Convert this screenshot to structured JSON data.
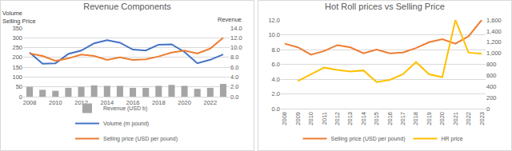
{
  "chart_data": [
    {
      "type": "bar",
      "title": "Revenue Components",
      "ylabel": "Volume\nSelling Price",
      "y2label": "Revenue",
      "categories": [
        "2008",
        null,
        "2010",
        null,
        "2012",
        null,
        "2014",
        null,
        "2016",
        null,
        "2018",
        null,
        "2020",
        null,
        "2022",
        null
      ],
      "series": [
        {
          "name": "Revenue (USD b)",
          "type": "bar",
          "axis": "y2",
          "color": "#a5a5a5",
          "values": [
            2.0,
            1.4,
            1.2,
            1.8,
            2.0,
            2.3,
            2.2,
            2.2,
            1.8,
            1.8,
            2.2,
            2.4,
            2.2,
            1.6,
            1.8,
            2.6
          ]
        },
        {
          "name": "Volume (m pound)",
          "type": "line",
          "color": "#4472c4",
          "values": [
            225,
            168,
            170,
            218,
            235,
            272,
            288,
            275,
            240,
            235,
            265,
            267,
            228,
            170,
            188,
            215
          ]
        },
        {
          "name": "Selling price (USD per pound)",
          "type": "line",
          "axis": "y2",
          "color": "#ed7d31",
          "values": [
            8.8,
            8.3,
            7.3,
            7.8,
            8.6,
            8.3,
            7.5,
            8.0,
            7.5,
            7.6,
            8.2,
            9.0,
            9.4,
            8.8,
            9.8,
            12.0
          ]
        }
      ],
      "ylim": [
        0,
        350
      ],
      "yticks": [
        0,
        50,
        100,
        150,
        200,
        250,
        300,
        350
      ],
      "y2lim": [
        0,
        14
      ],
      "y2ticks": [
        {
          "value": 0,
          "label": "0.0"
        },
        {
          "value": 2,
          "label": "2.0"
        },
        {
          "value": 4,
          "label": "4.0"
        },
        {
          "value": 6,
          "label": "6.0"
        },
        {
          "value": 8,
          "label": "8.0"
        },
        {
          "value": 10,
          "label": "10.0"
        },
        {
          "value": 12,
          "label": "12.0"
        },
        {
          "value": 14,
          "label": "14.0"
        }
      ],
      "grid": true,
      "legend": "bottom"
    },
    {
      "type": "line",
      "title": "Hot Roll prices vs Selling Price",
      "categories": [
        "2008",
        "2009",
        "2010",
        "2011",
        "2012",
        "2013",
        "2014",
        "2015",
        "2016",
        "2017",
        "2018",
        "2019",
        "2020",
        "2021",
        "2022",
        "2023"
      ],
      "series": [
        {
          "name": "Selling price (USD per pound)",
          "color": "#ed7d31",
          "values": [
            8.8,
            8.3,
            7.3,
            7.8,
            8.6,
            8.3,
            7.5,
            8.0,
            7.5,
            7.6,
            8.2,
            9.0,
            9.4,
            8.8,
            9.8,
            12.0
          ]
        },
        {
          "name": "HR price",
          "axis": "y2",
          "color": "#ffc000",
          "values": [
            null,
            500,
            620,
            740,
            700,
            670,
            690,
            480,
            520,
            620,
            840,
            620,
            570,
            1600,
            1010,
            990
          ]
        }
      ],
      "ylim": [
        0,
        12
      ],
      "yticks": [
        {
          "value": 0,
          "label": "0.0"
        },
        {
          "value": 2,
          "label": "2.0"
        },
        {
          "value": 4,
          "label": "4.0"
        },
        {
          "value": 6,
          "label": "6.0"
        },
        {
          "value": 8,
          "label": "8.0"
        },
        {
          "value": 10,
          "label": "10.0"
        },
        {
          "value": 12,
          "label": "12.0"
        }
      ],
      "y2lim": [
        0,
        1600
      ],
      "y2ticks": [
        0,
        200,
        400,
        600,
        800,
        {
          "value": 1000,
          "label": "1,000"
        },
        {
          "value": 1200,
          "label": "1,200"
        },
        {
          "value": 1400,
          "label": "1,400"
        },
        {
          "value": 1600,
          "label": "1,600"
        }
      ],
      "grid": true,
      "legend": "bottom"
    }
  ]
}
